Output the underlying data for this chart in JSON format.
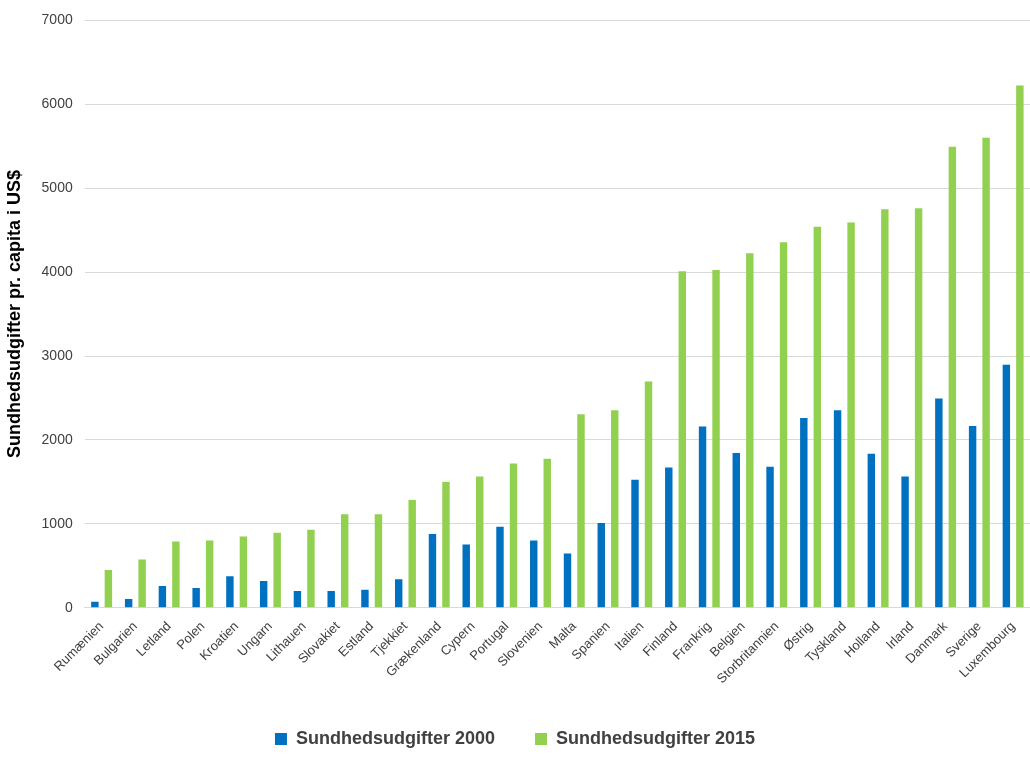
{
  "chart_data": {
    "type": "bar",
    "ylabel": "Sundhedsudgifter pr. capita i US$",
    "categories": [
      "Rumænien",
      "Bulgarien",
      "Letland",
      "Polen",
      "Kroatien",
      "Ungarn",
      "Lithauen",
      "Slovakiet",
      "Estland",
      "Tjekkiet",
      "Grækenland",
      "Cypern",
      "Portugal",
      "Slovenien",
      "Malta",
      "Spanien",
      "Italien",
      "Finland",
      "Frankrig",
      "Belgien",
      "Storbritannien",
      "Østrig",
      "Tyskland",
      "Holland",
      "Irland",
      "Danmark",
      "Sverige",
      "Luxembourg"
    ],
    "series": [
      {
        "name": "Sundhedsudgifter 2000",
        "color": "#0070c0",
        "values": [
          70,
          105,
          260,
          235,
          375,
          320,
          200,
          200,
          215,
          340,
          880,
          755,
          965,
          800,
          645,
          1010,
          1525,
          1670,
          2160,
          1845,
          1680,
          2260,
          2355,
          1835,
          1565,
          2495,
          2165,
          2895
        ]
      },
      {
        "name": "Sundhedsudgifter 2015",
        "color": "#92d050",
        "values": [
          450,
          575,
          790,
          800,
          850,
          895,
          930,
          1115,
          1115,
          1285,
          1500,
          1565,
          1720,
          1775,
          2305,
          2355,
          2695,
          4010,
          4025,
          4225,
          4355,
          4540,
          4590,
          4750,
          4760,
          5495,
          5600,
          6225
        ]
      }
    ],
    "ylim": [
      0,
      7000
    ],
    "yticks": [
      0,
      1000,
      2000,
      3000,
      4000,
      5000,
      6000,
      7000
    ],
    "grid": "y",
    "legend": "bottom"
  }
}
